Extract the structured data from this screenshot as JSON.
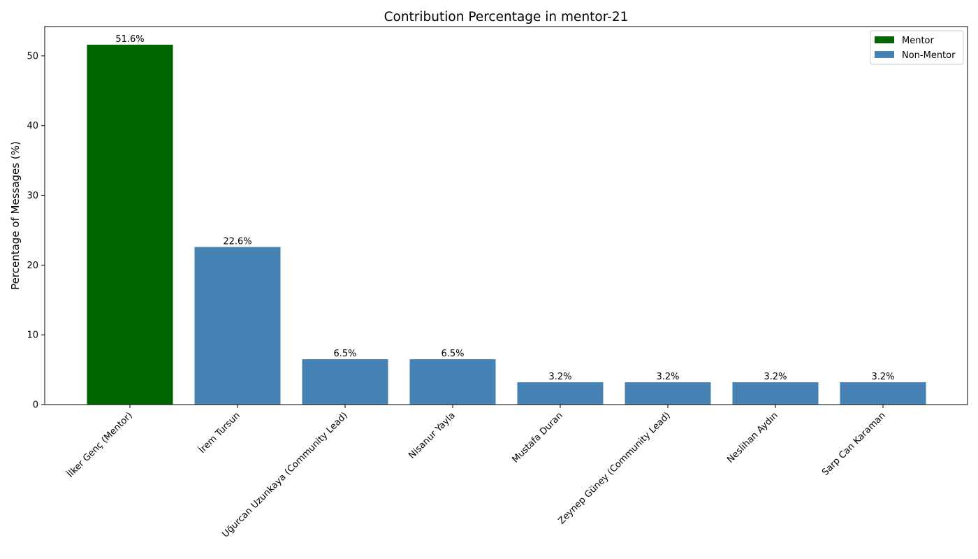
{
  "chart_data": {
    "type": "bar",
    "title": "Contribution Percentage in mentor-21",
    "xlabel": "",
    "ylabel": "Percentage of Messages (%)",
    "categories": [
      "İlker Genç (Mentor)",
      "İrem Tursun",
      "Uğurcan Uzunkaya (Community Lead)",
      "Nisanur Yayla",
      "Mustafa Duran",
      "Zeynep Güney (Community Lead)",
      "Neslihan Aydın",
      "Sarp Can Karaman"
    ],
    "values": [
      51.6,
      22.6,
      6.5,
      6.5,
      3.2,
      3.2,
      3.2,
      3.2
    ],
    "value_labels": [
      "51.6%",
      "22.6%",
      "6.5%",
      "6.5%",
      "3.2%",
      "3.2%",
      "3.2%",
      "3.2%"
    ],
    "groups": [
      "Mentor",
      "Non-Mentor",
      "Non-Mentor",
      "Non-Mentor",
      "Non-Mentor",
      "Non-Mentor",
      "Non-Mentor",
      "Non-Mentor"
    ],
    "ylim": [
      0,
      54.2
    ],
    "yticks": [
      0,
      10,
      20,
      30,
      40,
      50
    ],
    "grid": false,
    "legend": {
      "position": "top-right",
      "entries": [
        {
          "name": "Mentor",
          "color": "#006400"
        },
        {
          "name": "Non-Mentor",
          "color": "#4682b4"
        }
      ]
    }
  }
}
